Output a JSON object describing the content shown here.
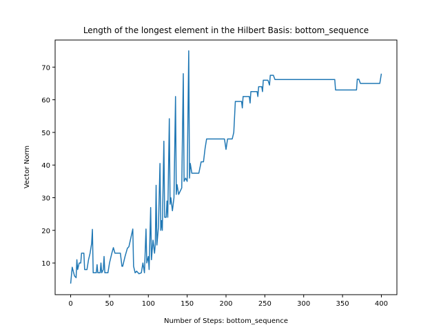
{
  "chart_data": {
    "type": "line",
    "title": "Length of the longest element in the Hilbert Basis: bottom_sequence",
    "x_label": "Number of Steps: bottom_sequence",
    "y_label": "Vector Norm",
    "x": [
      0,
      2,
      5,
      7,
      8,
      9,
      11,
      13,
      14,
      17,
      18,
      21,
      23,
      25,
      27,
      28,
      29,
      33,
      34,
      35,
      38,
      39,
      40,
      42,
      43,
      44,
      48,
      50,
      53,
      55,
      57,
      64,
      66,
      67,
      70,
      73,
      75,
      80,
      81,
      83,
      85,
      88,
      91,
      93,
      95,
      97,
      98,
      100,
      101,
      103,
      104,
      106,
      108,
      109,
      110,
      111,
      113,
      115,
      116,
      117,
      118,
      120,
      121,
      123,
      124,
      125,
      127,
      128,
      129,
      131,
      133,
      135,
      136,
      137,
      139,
      143,
      145,
      146,
      148,
      150,
      152,
      153,
      154,
      156,
      165,
      168,
      171,
      173,
      175,
      198,
      200,
      202,
      208,
      210,
      212,
      220,
      221,
      222,
      230,
      231,
      232,
      240,
      241,
      242,
      246,
      247,
      248,
      254,
      256,
      257,
      261,
      263,
      340,
      341,
      368,
      369,
      371,
      373,
      398,
      400
    ],
    "series": [
      {
        "name": "bottom_sequence",
        "color": "#1f77b4",
        "values": [
          3.7,
          8.7,
          6,
          5.5,
          11,
          8,
          10,
          10,
          13,
          13,
          8,
          8,
          11,
          13,
          16,
          20.3,
          7,
          7,
          9.5,
          7,
          7,
          10,
          7,
          8,
          12,
          7,
          7,
          10,
          13,
          14.7,
          13,
          13,
          9,
          9,
          12,
          14.5,
          15,
          20.4,
          9,
          7,
          7.5,
          6.7,
          7,
          10,
          7,
          20.4,
          10,
          12,
          8,
          27,
          11,
          17,
          13,
          16,
          33.8,
          15.5,
          21,
          40.5,
          20,
          23,
          20,
          47.3,
          24,
          24,
          29,
          24,
          54.2,
          28,
          30,
          26,
          30,
          61,
          31,
          34,
          31,
          33,
          68,
          35,
          36,
          35,
          75,
          36,
          40.5,
          37.5,
          37.5,
          41,
          41,
          45,
          48,
          48,
          44.8,
          48,
          48,
          50,
          59.5,
          59.5,
          57.5,
          61,
          61,
          59,
          62.5,
          62.5,
          61,
          64,
          64,
          62.5,
          66,
          66,
          64.5,
          67.5,
          67.5,
          66.2,
          66.2,
          63,
          63,
          66.3,
          66.3,
          65,
          65,
          68
        ]
      }
    ],
    "xlim": [
      -20,
      420
    ],
    "ylim": [
      0.3,
      78.3
    ],
    "xticks": [
      0,
      50,
      100,
      150,
      200,
      250,
      300,
      350,
      400
    ],
    "yticks": [
      10,
      20,
      30,
      40,
      50,
      60,
      70
    ],
    "grid": false
  }
}
